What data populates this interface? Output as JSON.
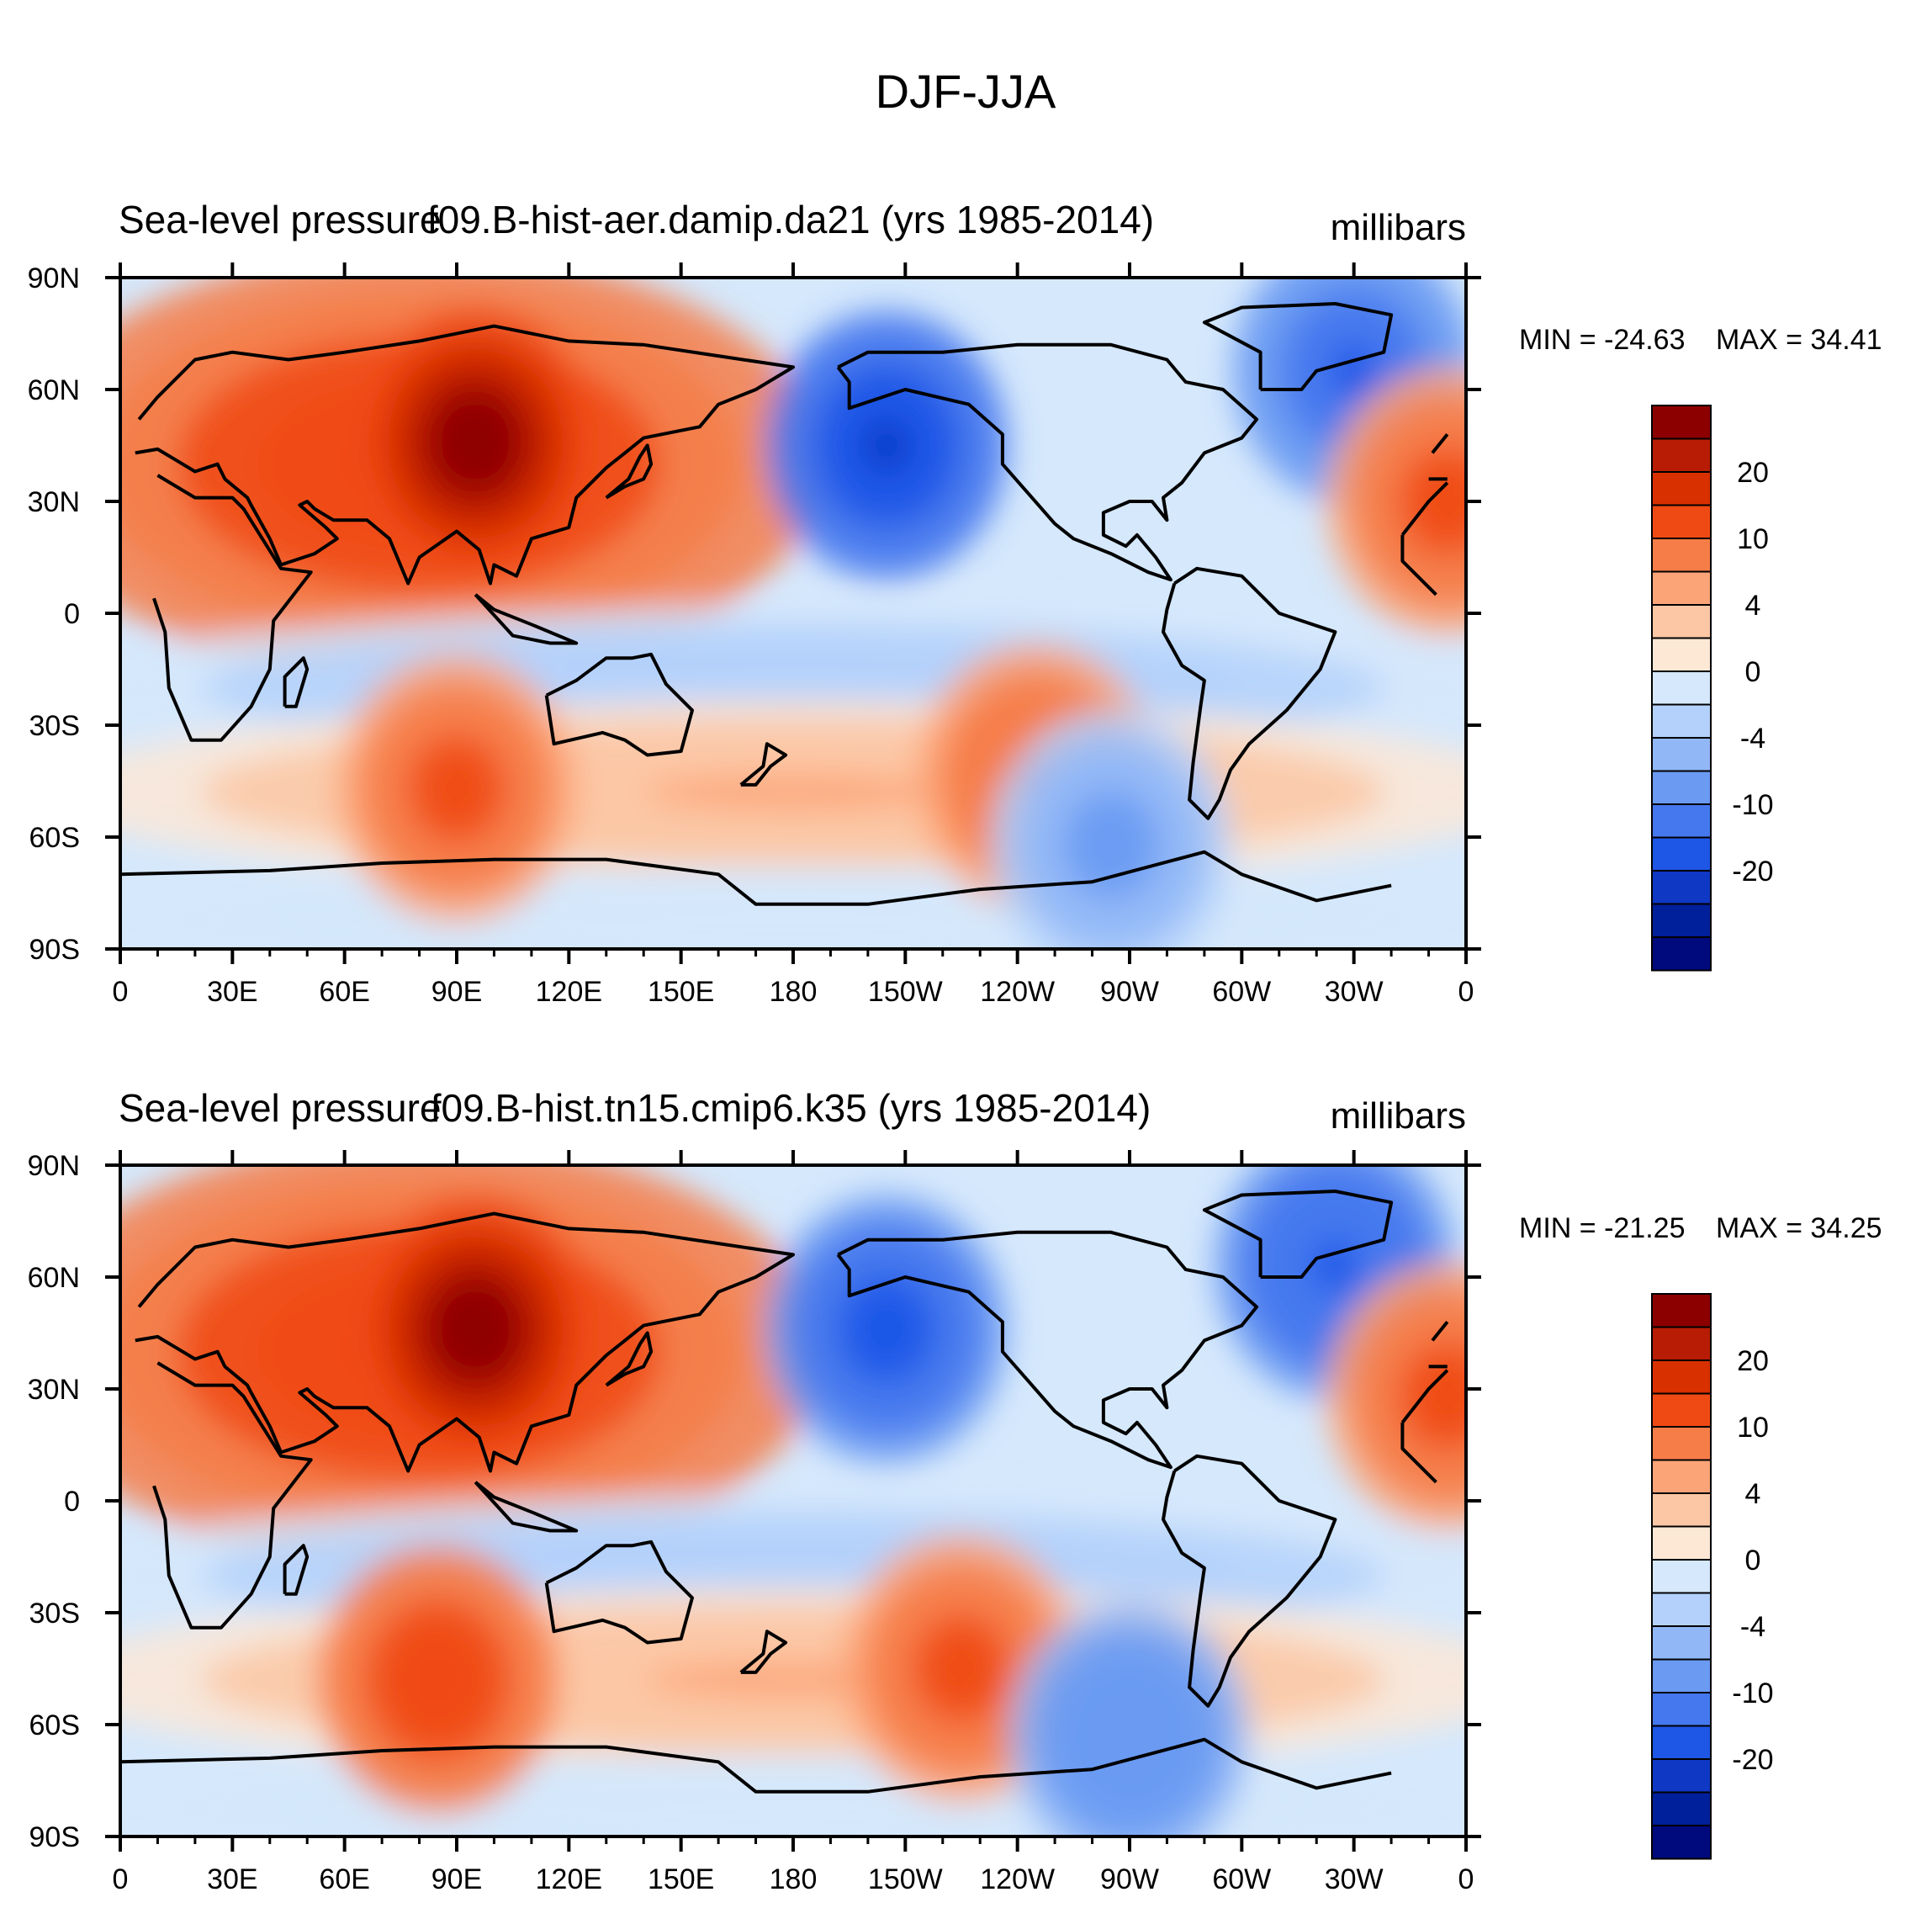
{
  "figure_title": "DJF-JJA",
  "chart_data": [
    {
      "type": "heatmap",
      "title_left": "Sea-level pressure",
      "title_center": "f09.B-hist-aer.damip.da21 (yrs 1985-2014)",
      "units": "millibars",
      "min_label": "MIN = -24.63",
      "max_label": "MAX =  34.41",
      "min": -24.63,
      "max": 34.41,
      "x_ticks": [
        "0",
        "30E",
        "60E",
        "90E",
        "120E",
        "150E",
        "180",
        "150W",
        "120W",
        "90W",
        "60W",
        "30W",
        "0"
      ],
      "y_ticks": [
        "90N",
        "60N",
        "30N",
        "0",
        "30S",
        "60S",
        "90S"
      ],
      "xlim": [
        0,
        360
      ],
      "ylim": [
        -90,
        90
      ],
      "fields": {
        "pacific_low": {
          "lon": 205,
          "lat": 45,
          "value": -22
        },
        "icelandic_low": {
          "lon": 330,
          "lat": 65,
          "value": -16
        },
        "siberian_high": {
          "lon": 95,
          "lat": 46,
          "value": 30
        },
        "azores_high": {
          "lon": 355,
          "lat": 30,
          "value": 12
        },
        "south_indian_high": {
          "lon": 90,
          "lat": -47,
          "value": 12
        },
        "south_pacific_high": {
          "lon": 245,
          "lat": -44,
          "value": 10
        },
        "amundsen_low": {
          "lon": 265,
          "lat": -62,
          "value": -8
        }
      }
    },
    {
      "type": "heatmap",
      "title_left": "Sea-level pressure",
      "title_center": "f09.B-hist.tn15.cmip6.k35 (yrs 1985-2014)",
      "units": "millibars",
      "min_label": "MIN = -21.25",
      "max_label": "MAX =  34.25",
      "min": -21.25,
      "max": 34.25,
      "x_ticks": [
        "0",
        "30E",
        "60E",
        "90E",
        "120E",
        "150E",
        "180",
        "150W",
        "120W",
        "90W",
        "60W",
        "30W",
        "0"
      ],
      "y_ticks": [
        "90N",
        "60N",
        "30N",
        "0",
        "30S",
        "60S",
        "90S"
      ],
      "xlim": [
        0,
        360
      ],
      "ylim": [
        -90,
        90
      ],
      "fields": {
        "pacific_low": {
          "lon": 205,
          "lat": 46,
          "value": -20
        },
        "icelandic_low": {
          "lon": 325,
          "lat": 63,
          "value": -17
        },
        "siberian_high": {
          "lon": 95,
          "lat": 46,
          "value": 30
        },
        "azores_high": {
          "lon": 355,
          "lat": 28,
          "value": 12
        },
        "south_indian_high": {
          "lon": 85,
          "lat": -48,
          "value": 14
        },
        "south_pacific_high": {
          "lon": 225,
          "lat": -45,
          "value": 12
        },
        "amundsen_low": {
          "lon": 270,
          "lat": -63,
          "value": -10
        }
      }
    }
  ],
  "colorbar": {
    "levels": [
      -24,
      -20,
      -15,
      -10,
      -6,
      -4,
      -2,
      0,
      2,
      4,
      6,
      10,
      15,
      20,
      24
    ],
    "labels": [
      "20",
      "10",
      "4",
      "0",
      "-4",
      "-10",
      "-20"
    ],
    "colors": [
      "#8c0000",
      "#b81c05",
      "#d93000",
      "#f04a14",
      "#f67d48",
      "#fba478",
      "#fcc7a4",
      "#fde8d6",
      "#d5e8fc",
      "#b4d1fb",
      "#91b7f7",
      "#6a9af2",
      "#4578ee",
      "#1e56e6",
      "#0f38c4",
      "#001f9a",
      "#000a7c"
    ]
  }
}
